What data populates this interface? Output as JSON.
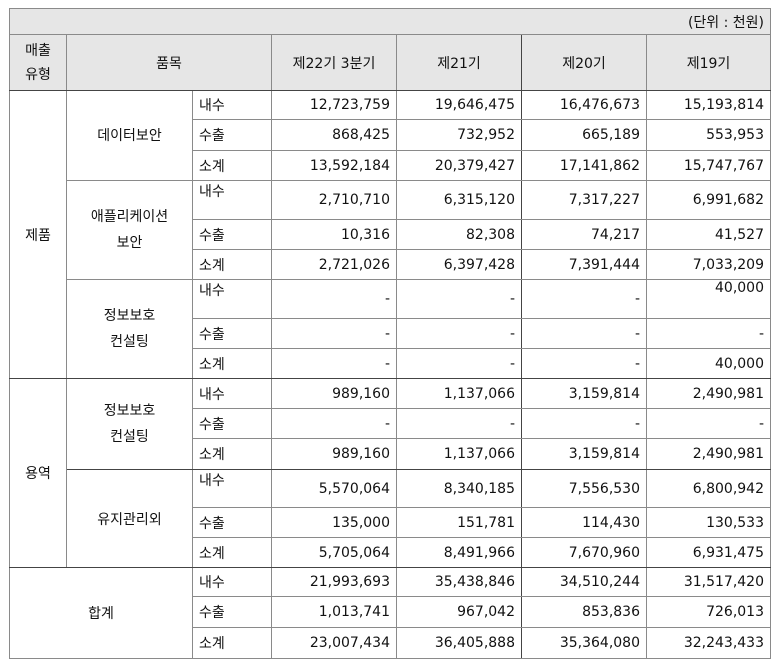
{
  "unit_label": "(단위 : 천원)",
  "header": {
    "type": "매출\n유형",
    "item": "품목",
    "periods": [
      "제22기 3분기",
      "제21기",
      "제20기",
      "제19기"
    ]
  },
  "sub_labels": {
    "domestic": "내수",
    "export": "수출",
    "subtotal": "소계"
  },
  "sections": [
    {
      "type": "제품",
      "items": [
        {
          "name": "데이터보안",
          "rows": [
            [
              "12,723,759",
              "19,646,475",
              "16,476,673",
              "15,193,814"
            ],
            [
              "868,425",
              "732,952",
              "665,189",
              "553,953"
            ],
            [
              "13,592,184",
              "20,379,427",
              "17,141,862",
              "15,747,767"
            ]
          ]
        },
        {
          "name": "애플리케이션\n보안",
          "rows": [
            [
              "2,710,710",
              "6,315,120",
              "7,317,227",
              "6,991,682"
            ],
            [
              "10,316",
              "82,308",
              "74,217",
              "41,527"
            ],
            [
              "2,721,026",
              "6,397,428",
              "7,391,444",
              "7,033,209"
            ]
          ]
        },
        {
          "name": "정보보호\n컨설팅",
          "rows": [
            [
              "-",
              "-",
              "-",
              "40,000"
            ],
            [
              "-",
              "-",
              "-",
              "-"
            ],
            [
              "-",
              "-",
              "-",
              "40,000"
            ]
          ]
        }
      ]
    },
    {
      "type": "용역",
      "items": [
        {
          "name": "정보보호\n컨설팅",
          "rows": [
            [
              "989,160",
              "1,137,066",
              "3,159,814",
              "2,490,981"
            ],
            [
              "-",
              "-",
              "-",
              "-"
            ],
            [
              "989,160",
              "1,137,066",
              "3,159,814",
              "2,490,981"
            ]
          ]
        },
        {
          "name": "유지관리외",
          "rows": [
            [
              "5,570,064",
              "8,340,185",
              "7,556,530",
              "6,800,942"
            ],
            [
              "135,000",
              "151,781",
              "114,430",
              "130,533"
            ],
            [
              "5,705,064",
              "8,491,966",
              "7,670,960",
              "6,931,475"
            ]
          ]
        }
      ]
    }
  ],
  "total": {
    "label": "합계",
    "rows": [
      [
        "21,993,693",
        "35,438,846",
        "34,510,244",
        "31,517,420"
      ],
      [
        "1,013,741",
        "967,042",
        "853,836",
        "726,013"
      ],
      [
        "23,007,434",
        "36,405,888",
        "35,364,080",
        "32,243,433"
      ]
    ]
  }
}
